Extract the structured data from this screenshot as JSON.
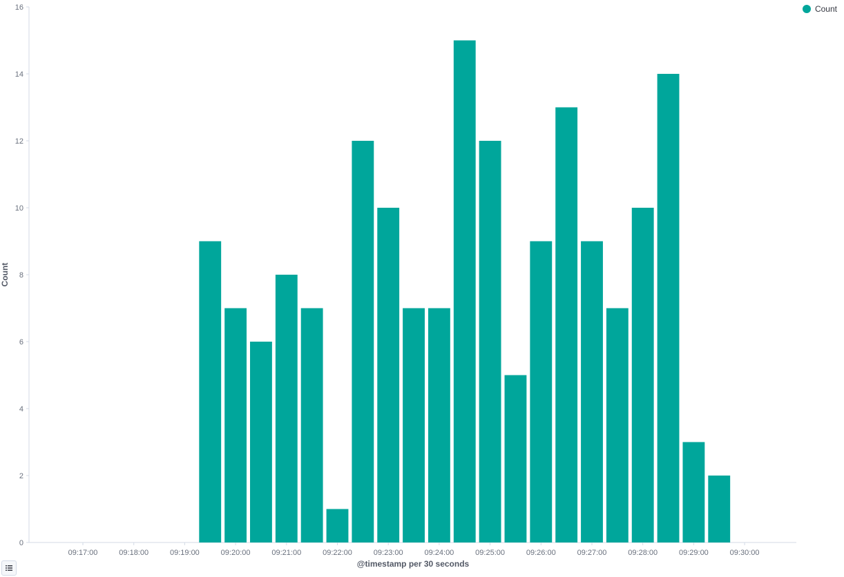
{
  "legend": {
    "label": "Count",
    "color": "#00a69b"
  },
  "chart_data": {
    "type": "bar",
    "title": "",
    "xlabel": "@timestamp per 30 seconds",
    "ylabel": "Count",
    "ylim": [
      0,
      16
    ],
    "y_ticks": [
      0,
      2,
      4,
      6,
      8,
      10,
      12,
      14,
      16
    ],
    "x_tick_labels": [
      "09:17:00",
      "09:18:00",
      "09:19:00",
      "09:20:00",
      "09:21:00",
      "09:22:00",
      "09:23:00",
      "09:24:00",
      "09:25:00",
      "09:26:00",
      "09:27:00",
      "09:28:00",
      "09:29:00",
      "09:30:00"
    ],
    "categories": [
      "09:19:30",
      "09:20:00",
      "09:20:30",
      "09:21:00",
      "09:21:30",
      "09:22:00",
      "09:22:30",
      "09:23:00",
      "09:23:30",
      "09:24:00",
      "09:24:30",
      "09:25:00",
      "09:25:30",
      "09:26:00",
      "09:26:30",
      "09:27:00",
      "09:27:30",
      "09:28:00",
      "09:28:30",
      "09:29:00",
      "09:29:30"
    ],
    "series": [
      {
        "name": "Count",
        "color": "#00a69b",
        "values": [
          9,
          7,
          6,
          8,
          7,
          1,
          12,
          10,
          7,
          7,
          15,
          12,
          5,
          9,
          13,
          9,
          7,
          10,
          14,
          3,
          2
        ]
      }
    ],
    "grid": false,
    "legend_position": "top-right"
  }
}
